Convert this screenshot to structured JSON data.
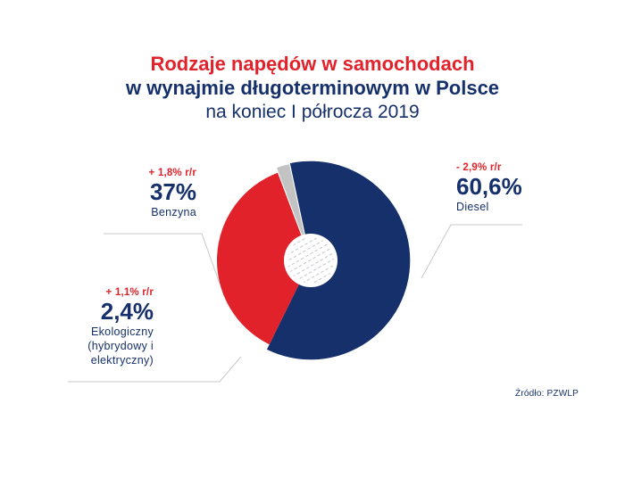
{
  "title": {
    "line1": "Rodzaje napędów w samochodach",
    "line2": "w wynajmie długoterminowym w Polsce",
    "line3": "na koniec I półrocza 2019"
  },
  "chart_data": {
    "type": "pie",
    "categories": [
      "Diesel",
      "Benzyna",
      "Ekologiczny (hybrydowy i elektryczny)"
    ],
    "values": [
      60.6,
      37,
      2.4
    ],
    "value_labels": [
      "60,6%",
      "37%",
      "2,4%"
    ],
    "changes": [
      "- 2,9% r/r",
      "+ 1,8% r/r",
      "+ 1,1% r/r"
    ],
    "colors": [
      "#15306b",
      "#e2222b",
      "#c3c3c3"
    ],
    "title": "Rodzaje napędów w samochodach w wynajmie długoterminowym w Polsce na koniec I półrocza 2019"
  },
  "labels": {
    "benzyna": {
      "change": "+ 1,8% r/r",
      "value": "37%",
      "name": "Benzyna"
    },
    "diesel": {
      "change": "- 2,9% r/r",
      "value": "60,6%",
      "name": "Diesel"
    },
    "eko": {
      "change": "+ 1,1% r/r",
      "value": "2,4%",
      "name_line1": "Ekologiczny",
      "name_line2": "(hybrydowy i",
      "name_line3": "elektryczny)"
    }
  },
  "source": "Źródło: PZWLP"
}
